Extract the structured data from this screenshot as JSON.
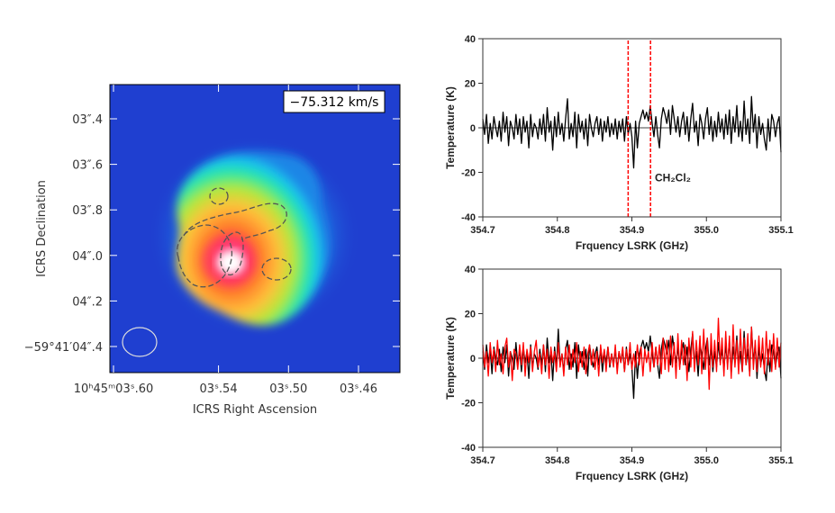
{
  "map": {
    "velocity_label": "−75.312 km/s",
    "ylabel": "ICRS Declination",
    "xlabel": "ICRS Right Ascension",
    "yticks": [
      {
        "value": 3.4,
        "label": "03″.4"
      },
      {
        "value": 3.6,
        "label": "03″.6"
      },
      {
        "value": 3.8,
        "label": "03″.8"
      },
      {
        "value": 4.0,
        "label": "04″.0"
      },
      {
        "value": 4.2,
        "label": "04″.2"
      },
      {
        "value": 4.4,
        "label": "−59°41′04″.4"
      }
    ],
    "xticks": [
      {
        "value": 3.6,
        "label": "10ʰ45ᵐ03ˢ.60"
      },
      {
        "value": 3.54,
        "label": "03ˢ.54"
      },
      {
        "value": 3.5,
        "label": "03ˢ.50"
      },
      {
        "value": 3.46,
        "label": "03ˢ.46"
      }
    ],
    "colors": {
      "background": "#1f3fd0",
      "peak": "#ffffff",
      "contours": "#555555",
      "beam": "#dddddd"
    }
  },
  "chart_data": [
    {
      "type": "line",
      "xlabel": "Frquency LSRK (GHz)",
      "ylabel": "Temperature (K)",
      "xlim": [
        354.7,
        355.1
      ],
      "ylim": [
        -40,
        40
      ],
      "xticks": [
        354.7,
        354.8,
        354.9,
        355.0,
        355.1
      ],
      "xtick_labels": [
        "354.7",
        "354.8",
        "354.9",
        "355.0",
        "355.1"
      ],
      "yticks": [
        -40,
        -20,
        0,
        20,
        40
      ],
      "ytick_labels": [
        "-40",
        "-20",
        "0",
        "20",
        "40"
      ],
      "series": [
        {
          "color": "#000000",
          "x_start": 354.7,
          "x_end": 355.1,
          "values": [
            4,
            -3,
            6,
            -7,
            2,
            -5,
            5,
            0,
            -4,
            3,
            -6,
            7,
            -2,
            5,
            -8,
            3,
            0,
            -5,
            6,
            -3,
            4,
            -7,
            5,
            -2,
            3,
            -9,
            6,
            -4,
            2,
            0,
            -5,
            4,
            -3,
            6,
            -6,
            9,
            -2,
            3,
            -10,
            5,
            -4,
            7,
            -3,
            2,
            -6,
            4,
            13,
            -5,
            2,
            -4,
            7,
            -9,
            6,
            -2,
            3,
            -5,
            4,
            -8,
            6,
            0,
            -4,
            2,
            5,
            -3,
            4,
            -6,
            3,
            -2,
            5,
            -4,
            2,
            -3,
            4,
            -5,
            3,
            -2,
            4,
            -6,
            5,
            -3,
            2,
            -4,
            -18,
            3,
            -9,
            2,
            5,
            8,
            4,
            7,
            3,
            10,
            2,
            -4,
            5,
            -3,
            -9,
            4,
            9,
            6,
            2,
            8,
            -3,
            10,
            4,
            -2,
            5,
            -4,
            3,
            7,
            -3,
            5,
            -6,
            4,
            11,
            -2,
            3,
            -8,
            6,
            2,
            -5,
            4,
            9,
            -3,
            5,
            -6,
            3,
            -4,
            7,
            -2,
            4,
            -5,
            6,
            -3,
            8,
            -7,
            5,
            -2,
            10,
            -4,
            3,
            -6,
            12,
            -3,
            4,
            -7,
            14,
            -2,
            6,
            -9,
            5,
            -3,
            2,
            -5,
            -10,
            4,
            -6,
            6,
            3,
            -4,
            2,
            5,
            -11
          ]
        },
        {
          "color": "#ff0000",
          "x_start": 354.895,
          "x_end": 354.895,
          "values": [
            -40,
            40
          ],
          "style": "dashed"
        },
        {
          "color": "#ff0000",
          "x_start": 354.925,
          "x_end": 354.925,
          "values": [
            -40,
            40
          ],
          "style": "dashed"
        }
      ],
      "annotations": [
        {
          "text": "CH₂Cl₂",
          "x": 354.955,
          "y": -24
        }
      ]
    },
    {
      "type": "line",
      "xlabel": "Frquency LSRK (GHz)",
      "ylabel": "Temperature (K)",
      "xlim": [
        354.7,
        355.1
      ],
      "ylim": [
        -40,
        40
      ],
      "xticks": [
        354.7,
        354.8,
        354.9,
        355.0,
        355.1
      ],
      "xtick_labels": [
        "354.7",
        "354.8",
        "354.9",
        "355.0",
        "355.1"
      ],
      "yticks": [
        -40,
        -20,
        0,
        20,
        40
      ],
      "ytick_labels": [
        "-40",
        "-20",
        "0",
        "20",
        "40"
      ],
      "series": [
        {
          "color": "#000000",
          "x_start": 354.7,
          "x_end": 355.1,
          "values": [
            3,
            -5,
            6,
            -2,
            4,
            -7,
            5,
            0,
            -3,
            4,
            -6,
            5,
            -2,
            6,
            -8,
            3,
            0,
            -5,
            7,
            -3,
            4,
            -6,
            5,
            -2,
            3,
            -9,
            6,
            -4,
            2,
            0,
            -5,
            4,
            -3,
            6,
            -6,
            9,
            -2,
            3,
            -10,
            5,
            -4,
            13,
            -3,
            2,
            -6,
            4,
            8,
            -5,
            2,
            -4,
            7,
            -9,
            6,
            -2,
            3,
            -5,
            4,
            -8,
            6,
            0,
            -4,
            2,
            5,
            -3,
            4,
            -6,
            3,
            -2,
            5,
            -4,
            2,
            -3,
            4,
            -5,
            3,
            -2,
            4,
            -6,
            5,
            -3,
            2,
            -4,
            -18,
            3,
            -9,
            2,
            5,
            8,
            4,
            7,
            3,
            10,
            2,
            -4,
            5,
            -3,
            -9,
            4,
            9,
            6,
            2,
            8,
            -3,
            10,
            4,
            -2,
            5,
            -4,
            3,
            7,
            -3,
            5,
            -6,
            4,
            11,
            -2,
            3,
            -8,
            6,
            2,
            -5,
            4,
            9,
            -3,
            5,
            -6,
            3,
            -4,
            7,
            -2,
            4,
            -5,
            6,
            -3,
            8,
            -7,
            5,
            -2,
            10,
            -4,
            3,
            -6,
            12,
            -3,
            4,
            -7,
            14,
            -2,
            6,
            -9,
            5,
            -3,
            2,
            -5,
            -10,
            4,
            -6,
            6,
            3,
            -4,
            2,
            5,
            -9
          ]
        },
        {
          "color": "#ff0000",
          "x_start": 354.7,
          "x_end": 355.1,
          "values": [
            6,
            -4,
            3,
            -8,
            7,
            -2,
            4,
            -6,
            8,
            -3,
            2,
            -7,
            5,
            9,
            -4,
            3,
            -10,
            4,
            2,
            -5,
            6,
            -3,
            7,
            -8,
            4,
            -2,
            5,
            -6,
            3,
            8,
            -4,
            2,
            -7,
            6,
            -3,
            4,
            -9,
            5,
            -2,
            3,
            -6,
            7,
            -4,
            2,
            -8,
            5,
            -3,
            6,
            -5,
            4,
            -2,
            7,
            -6,
            3,
            -4,
            5,
            -7,
            2,
            6,
            -3,
            4,
            -5,
            3,
            -8,
            6,
            -2,
            4,
            -6,
            5,
            -3,
            2,
            -4,
            6,
            -7,
            3,
            -2,
            5,
            -6,
            4,
            -3,
            7,
            -5,
            2,
            -4,
            6,
            -3,
            5,
            -8,
            4,
            -2,
            3,
            -6,
            7,
            -4,
            5,
            -3,
            6,
            -7,
            9,
            -5,
            8,
            -6,
            10,
            -4,
            7,
            -9,
            11,
            -5,
            8,
            -3,
            6,
            -10,
            9,
            -4,
            12,
            -6,
            8,
            -3,
            10,
            -7,
            13,
            -5,
            9,
            -14,
            11,
            -4,
            8,
            -6,
            18,
            -3,
            9,
            -8,
            12,
            -5,
            10,
            -9,
            15,
            -4,
            8,
            -7,
            13,
            -6,
            9,
            -3,
            11,
            -8,
            14,
            -5,
            8,
            -6,
            10,
            -4,
            9,
            -7,
            12,
            -3,
            8,
            -6,
            11,
            -5,
            9,
            -4,
            7
          ]
        }
      ]
    }
  ]
}
